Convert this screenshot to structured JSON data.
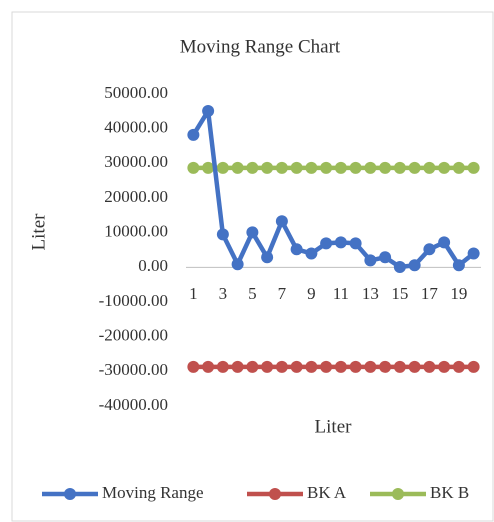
{
  "chart_data": {
    "type": "line",
    "title": "Moving Range Chart",
    "y_label": "Liter",
    "x_label": "Liter",
    "categories": [
      "1",
      null,
      "3",
      null,
      "5",
      null,
      "7",
      null,
      "9",
      null,
      "11",
      null,
      "13",
      null,
      "15",
      null,
      "17",
      null,
      "19",
      null
    ],
    "series": [
      {
        "name": "Moving Range",
        "color": "#4472c4",
        "values": [
          38200,
          45100,
          9500,
          900,
          10100,
          2900,
          13300,
          5200,
          4000,
          6900,
          7200,
          6900,
          2000,
          2900,
          100,
          600,
          5200,
          7200,
          600,
          4000
        ]
      },
      {
        "name": "BK A",
        "color": "#c0504d",
        "values": [
          -28700,
          -28700,
          -28700,
          -28700,
          -28700,
          -28700,
          -28700,
          -28700,
          -28700,
          -28700,
          -28700,
          -28700,
          -28700,
          -28700,
          -28700,
          -28700,
          -28700,
          -28700,
          -28700,
          -28700
        ]
      },
      {
        "name": "BK B",
        "color": "#9bbb59",
        "values": [
          28700,
          28700,
          28700,
          28700,
          28700,
          28700,
          28700,
          28700,
          28700,
          28700,
          28700,
          28700,
          28700,
          28700,
          28700,
          28700,
          28700,
          28700,
          28700,
          28700
        ]
      }
    ],
    "ylim": [
      -40000,
      50000
    ],
    "yticks": [
      {
        "value": -40000,
        "label": "-40000.00"
      },
      {
        "value": -30000,
        "label": "-30000.00"
      },
      {
        "value": -20000,
        "label": "-20000.00"
      },
      {
        "value": -10000,
        "label": "-10000.00"
      },
      {
        "value": 0,
        "label": "0.00"
      },
      {
        "value": 10000,
        "label": "10000.00"
      },
      {
        "value": 20000,
        "label": "20000.00"
      },
      {
        "value": 30000,
        "label": "30000.00"
      },
      {
        "value": 40000,
        "label": "40000.00"
      },
      {
        "value": 50000,
        "label": "50000.00"
      }
    ],
    "grid": false,
    "legend": "bottom"
  }
}
